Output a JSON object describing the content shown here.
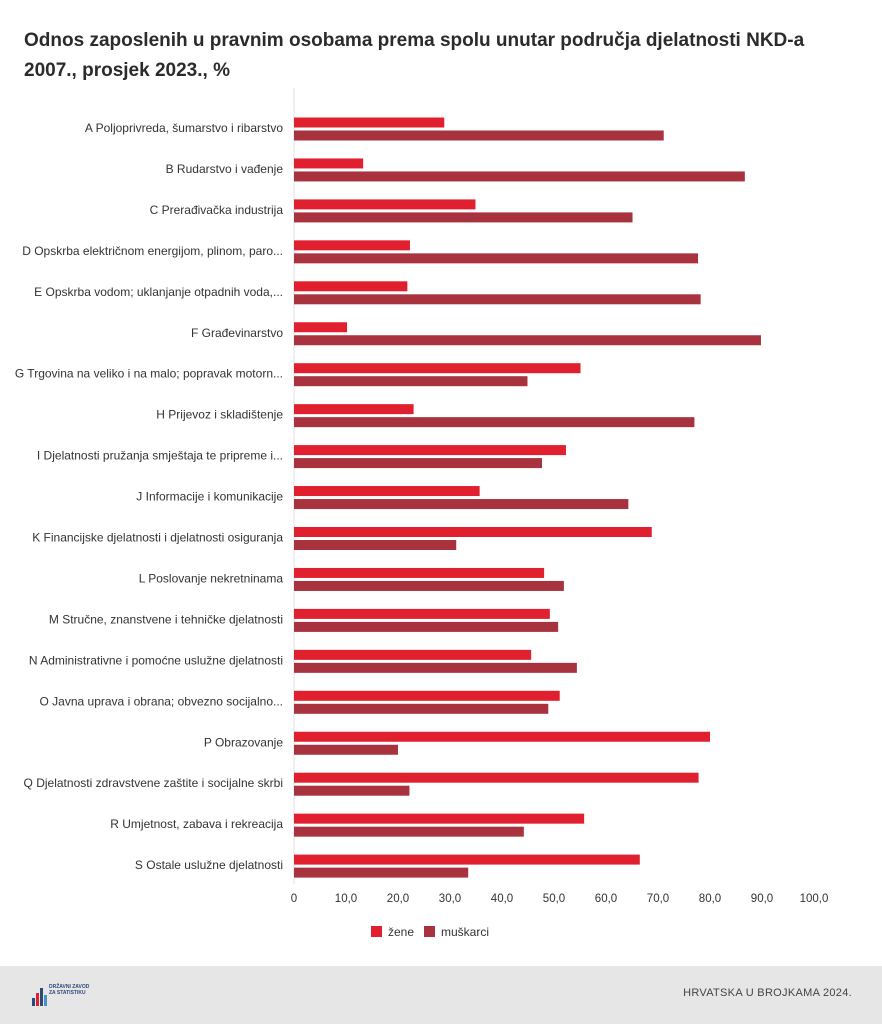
{
  "chart_data": {
    "type": "bar",
    "orientation": "horizontal",
    "title": "Odnos zaposlenih u pravnim osobama prema spolu unutar područja djelatnosti NKD-a 2007., prosjek 2023., %",
    "categories": [
      "A Poljoprivreda, šumarstvo i ribarstvo",
      "B Rudarstvo i vađenje",
      "C Prerađivačka industrija",
      "D Opskrba električnom energijom, plinom, paro...",
      "E Opskrba vodom; uklanjanje otpadnih voda,...",
      "F Građevinarstvo",
      "G Trgovina na veliko i na malo; popravak motorn...",
      "H Prijevoz i skladištenje",
      "I Djelatnosti pružanja smještaja te pripreme i...",
      "J Informacije i komunikacije",
      "K Financijske djelatnosti i djelatnosti osiguranja",
      "L Poslovanje nekretninama",
      "M Stručne, znanstvene i tehničke djelatnosti",
      "N Administrativne i pomoćne uslužne djelatnosti",
      "O Javna uprava i obrana; obvezno socijalno...",
      "P Obrazovanje",
      "Q Djelatnosti zdravstvene zaštite i socijalne skrbi",
      "R Umjetnost, zabava i rekreacija",
      "S Ostale uslužne djelatnosti"
    ],
    "series": [
      {
        "name": "žene",
        "color": "#e0202e",
        "values": [
          28.9,
          13.3,
          34.9,
          22.3,
          21.8,
          10.2,
          55.1,
          23.0,
          52.3,
          35.7,
          68.8,
          48.1,
          49.2,
          45.6,
          51.1,
          80.0,
          77.8,
          55.8,
          66.5
        ]
      },
      {
        "name": "muškarci",
        "color": "#a8323e",
        "values": [
          71.1,
          86.7,
          65.1,
          77.7,
          78.2,
          89.8,
          44.9,
          77.0,
          47.7,
          64.3,
          31.2,
          51.9,
          50.8,
          54.4,
          48.9,
          20.0,
          22.2,
          44.2,
          33.5
        ]
      }
    ],
    "xlim": [
      0,
      100
    ],
    "xticks": [
      0,
      10,
      20,
      30,
      40,
      50,
      60,
      70,
      80,
      90,
      100
    ],
    "xtick_labels": [
      "0",
      "10,0",
      "20,0",
      "30,0",
      "40,0",
      "50,0",
      "60,0",
      "70,0",
      "80,0",
      "90,0",
      "100,0"
    ],
    "legend_position": "bottom-center",
    "grid": false
  },
  "footer": {
    "text": "HRVATSKA U BROJKAMA 2024.",
    "logo_text": "DRŽAVNI ZAVOD ZA STATISTIKU"
  }
}
